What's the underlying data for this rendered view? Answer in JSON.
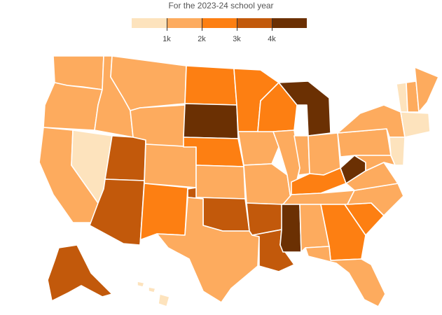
{
  "header": {
    "subtitle": "For the 2023-24 school year"
  },
  "legend": {
    "bins": [
      {
        "label": "",
        "color": "#fde3bd"
      },
      {
        "label": "1k",
        "color": "#fdab5e"
      },
      {
        "label": "2k",
        "color": "#fd7f12"
      },
      {
        "label": "3k",
        "color": "#c2590b"
      },
      {
        "label": "4k",
        "color": "#6b3003"
      }
    ]
  },
  "map": {
    "palette": [
      "#fde3bd",
      "#fdab5e",
      "#fd7f12",
      "#c2590b",
      "#6b3003"
    ],
    "regions": [
      {
        "id": "WA",
        "bin": 1
      },
      {
        "id": "OR",
        "bin": 1
      },
      {
        "id": "CA",
        "bin": 1
      },
      {
        "id": "ID",
        "bin": 1
      },
      {
        "id": "NV",
        "bin": 0
      },
      {
        "id": "UT",
        "bin": 3
      },
      {
        "id": "AZ",
        "bin": 3
      },
      {
        "id": "MT",
        "bin": 1
      },
      {
        "id": "WY",
        "bin": 1
      },
      {
        "id": "CO",
        "bin": 1
      },
      {
        "id": "NM",
        "bin": 2
      },
      {
        "id": "ND",
        "bin": 2
      },
      {
        "id": "SD",
        "bin": 4
      },
      {
        "id": "NE",
        "bin": 2
      },
      {
        "id": "KS",
        "bin": 1
      },
      {
        "id": "OK",
        "bin": 3
      },
      {
        "id": "TX",
        "bin": 1
      },
      {
        "id": "MN",
        "bin": 2
      },
      {
        "id": "IA",
        "bin": 1
      },
      {
        "id": "MO",
        "bin": 1
      },
      {
        "id": "AR",
        "bin": 3
      },
      {
        "id": "LA",
        "bin": 3
      },
      {
        "id": "WI",
        "bin": 2
      },
      {
        "id": "IL",
        "bin": 1
      },
      {
        "id": "MI",
        "bin": 4
      },
      {
        "id": "IN",
        "bin": 1
      },
      {
        "id": "OH",
        "bin": 1
      },
      {
        "id": "KY",
        "bin": 2
      },
      {
        "id": "TN",
        "bin": 1
      },
      {
        "id": "MS",
        "bin": 4
      },
      {
        "id": "AL",
        "bin": 1
      },
      {
        "id": "GA",
        "bin": 2
      },
      {
        "id": "FL",
        "bin": 1
      },
      {
        "id": "SC",
        "bin": 2
      },
      {
        "id": "NC",
        "bin": 1
      },
      {
        "id": "VA",
        "bin": 1
      },
      {
        "id": "WV",
        "bin": 4
      },
      {
        "id": "PA",
        "bin": 1
      },
      {
        "id": "NY",
        "bin": 1
      },
      {
        "id": "VT",
        "bin": 0
      },
      {
        "id": "NH",
        "bin": 1
      },
      {
        "id": "ME",
        "bin": 1
      },
      {
        "id": "MA",
        "bin": 0
      },
      {
        "id": "NJ",
        "bin": 0
      },
      {
        "id": "MD",
        "bin": 1
      },
      {
        "id": "AK",
        "bin": 3
      },
      {
        "id": "HI",
        "bin": 0
      }
    ]
  }
}
